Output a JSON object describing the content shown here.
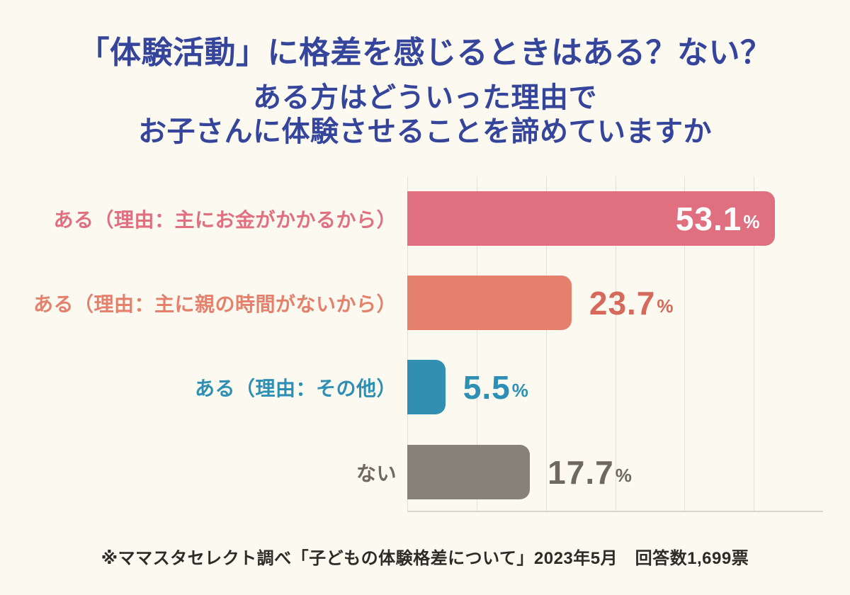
{
  "title": {
    "line1": "「体験活動」に格差を感じるときはある？ない？",
    "line2": "ある方はどういった理由で",
    "line3": "お子さんに体験させることを諦めていますか",
    "color": "#36459c"
  },
  "chart_data": {
    "type": "bar",
    "orientation": "horizontal",
    "title": "「体験活動」に格差を感じるときはある？ない？ある方はどういった理由でお子さんに体験させることを諦めていますか",
    "categories": [
      "ある（理由：主にお金がかかるから）",
      "ある（理由：主に親の時間がないから）",
      "ある（理由：その他）",
      "ない"
    ],
    "values": [
      53.1,
      23.7,
      5.5,
      17.7
    ],
    "value_labels": [
      "53.1",
      "23.7",
      "5.5",
      "17.7"
    ],
    "value_suffix": "%",
    "xlim": [
      0,
      60
    ],
    "gridline_interval": 10,
    "grid": true,
    "legend": false,
    "bar_colors": [
      "#e0707f",
      "#e4806c",
      "#338fb2",
      "#87817a"
    ],
    "label_colors": [
      "#e0707f",
      "#e4806c",
      "#2d8fb4",
      "#6e6861"
    ],
    "value_colors": [
      "#ffffff",
      "#d7695c",
      "#2d8fb4",
      "#6e6861"
    ],
    "value_inside": [
      true,
      false,
      false,
      false
    ],
    "gridline_color": "#e3e0d7",
    "axis_line_color": "#d8d5cc",
    "background_color": "#fcf9f0"
  },
  "footnote": {
    "text": "※ママスタセレクト調べ「子どもの体験格差について」2023年5月　回答数1,699票"
  }
}
